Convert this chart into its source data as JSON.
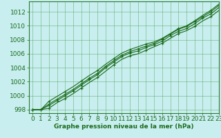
{
  "title": "Graphe pression niveau de la mer (hPa)",
  "xlabel": "Graphe pression niveau de la mer (hPa)",
  "x": [
    0,
    1,
    2,
    3,
    4,
    5,
    6,
    7,
    8,
    9,
    10,
    11,
    12,
    13,
    14,
    15,
    16,
    17,
    18,
    19,
    20,
    21,
    22,
    23
  ],
  "lines": [
    [
      998.0,
      998.0,
      998.2,
      999.0,
      999.6,
      1000.3,
      1001.1,
      1001.9,
      1002.6,
      1003.5,
      1004.4,
      1005.2,
      1005.7,
      1006.0,
      1006.5,
      1007.0,
      1007.5,
      1008.2,
      1008.9,
      1009.3,
      1009.9,
      1010.7,
      1011.3,
      1012.2
    ],
    [
      998.0,
      998.0,
      998.6,
      999.3,
      1000.0,
      1000.7,
      1001.5,
      1002.3,
      1003.0,
      1004.0,
      1004.8,
      1005.6,
      1006.1,
      1006.4,
      1006.9,
      1007.3,
      1007.8,
      1008.6,
      1009.2,
      1009.6,
      1010.3,
      1011.1,
      1011.7,
      1012.6
    ],
    [
      998.0,
      998.0,
      998.8,
      999.5,
      1000.2,
      1000.9,
      1001.7,
      1002.5,
      1003.2,
      1004.2,
      1005.0,
      1005.8,
      1006.3,
      1006.7,
      1007.1,
      1007.5,
      1008.1,
      1008.8,
      1009.5,
      1009.9,
      1010.6,
      1011.3,
      1012.0,
      1012.9
    ],
    [
      998.0,
      998.0,
      999.2,
      999.9,
      1000.6,
      1001.3,
      1002.1,
      1002.9,
      1003.6,
      1004.5,
      1005.3,
      1006.1,
      1006.6,
      1007.0,
      1007.4,
      1007.7,
      1008.2,
      1008.9,
      1009.6,
      1010.0,
      1010.7,
      1011.5,
      1012.2,
      1013.1
    ]
  ],
  "markers_on_line": 3,
  "line_color": "#1a6b1a",
  "marker": "+",
  "marker_size": 3.5,
  "bg_color": "#c8eef0",
  "grid_color": "#4d9e4d",
  "ylim": [
    997.5,
    1013.5
  ],
  "xlim": [
    -0.5,
    23
  ],
  "yticks": [
    998,
    1000,
    1002,
    1004,
    1006,
    1008,
    1010,
    1012
  ],
  "xticks": [
    0,
    1,
    2,
    3,
    4,
    5,
    6,
    7,
    8,
    9,
    10,
    11,
    12,
    13,
    14,
    15,
    16,
    17,
    18,
    19,
    20,
    21,
    22,
    23
  ],
  "tick_color": "#1a6b1a",
  "label_color": "#1a6b1a",
  "label_fontsize": 6.5,
  "spine_color": "#2d7a2d"
}
